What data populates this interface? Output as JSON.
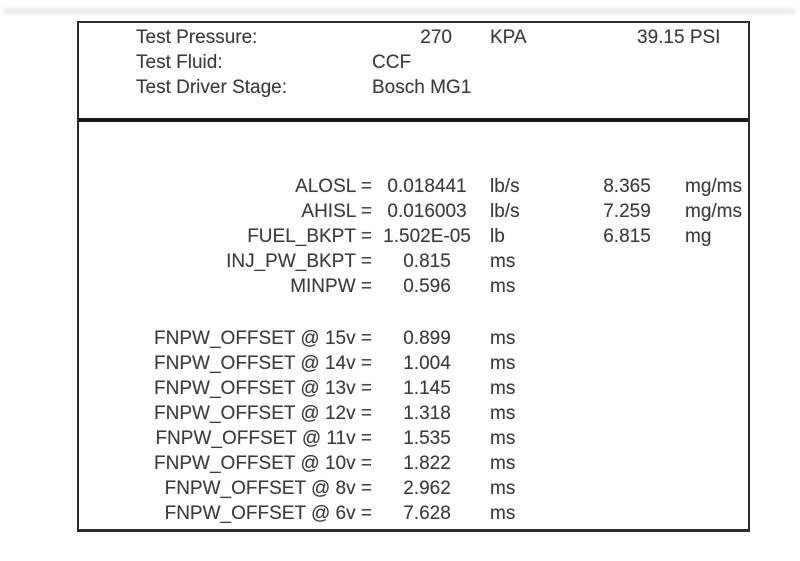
{
  "panel": {
    "header_rows": [
      {
        "label": "Test Pressure:",
        "value": "270",
        "unit": "KPA",
        "extra": "39.15 PSI"
      },
      {
        "label": "Test Fluid:",
        "value": "CCF"
      },
      {
        "label": "Test Driver Stage:",
        "value": "Bosch MG1"
      }
    ],
    "parameters": [
      {
        "label": "ALOSL =",
        "value": "0.018441",
        "unit": "lb/s",
        "value2": "8.365",
        "unit2": "mg/ms"
      },
      {
        "label": "AHISL =",
        "value": "0.016003",
        "unit": "lb/s",
        "value2": "7.259",
        "unit2": "mg/ms"
      },
      {
        "label": "FUEL_BKPT =",
        "value": "1.502E-05",
        "unit": "lb",
        "value2": "6.815",
        "unit2": "mg"
      },
      {
        "label": "INJ_PW_BKPT =",
        "value": "0.815",
        "unit": "ms"
      },
      {
        "label": "MINPW =",
        "value": "0.596",
        "unit": "ms"
      }
    ],
    "voltage_offsets": [
      {
        "label": "FNPW_OFFSET @ 15v =",
        "value": "0.899",
        "unit": "ms"
      },
      {
        "label": "FNPW_OFFSET @ 14v =",
        "value": "1.004",
        "unit": "ms"
      },
      {
        "label": "FNPW_OFFSET @ 13v =",
        "value": "1.145",
        "unit": "ms"
      },
      {
        "label": "FNPW_OFFSET @ 12v =",
        "value": "1.318",
        "unit": "ms"
      },
      {
        "label": "FNPW_OFFSET @ 11v =",
        "value": "1.535",
        "unit": "ms"
      },
      {
        "label": "FNPW_OFFSET @ 10v =",
        "value": "1.822",
        "unit": "ms"
      },
      {
        "label": "FNPW_OFFSET @ 8v =",
        "value": "2.962",
        "unit": "ms"
      },
      {
        "label": "FNPW_OFFSET @ 6v =",
        "value": "7.628",
        "unit": "ms"
      }
    ]
  },
  "colors": {
    "text": "#3d3d3d",
    "border": "#2e2e2e",
    "divider": "#1b1b1b",
    "background": "#ffffff",
    "artifact": "#e7e7e7"
  }
}
